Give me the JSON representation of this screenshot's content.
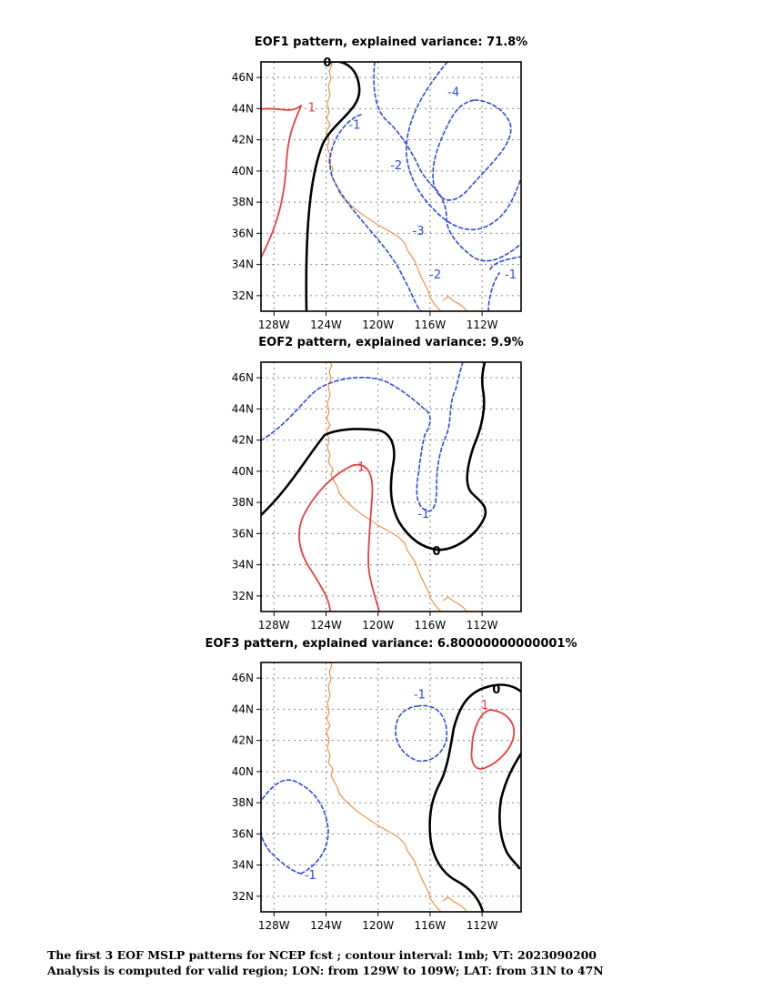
{
  "colors": {
    "positive": "#e84040",
    "negative": "#2a4be0",
    "zero": "#000000",
    "coast": "#f08020",
    "grid": "#888888"
  },
  "caption": {
    "line1": "The first 3 EOF MSLP patterns for NCEP fcst ; contour interval: 1mb; VT: 2023090200",
    "line2": "Analysis is computed for valid region; LON: from 129W to 109W; LAT: from 31N to 47N"
  },
  "chart_data": [
    {
      "type": "contour",
      "title": "EOF1 pattern, explained variance: 71.8%",
      "xlim": [
        -129,
        -109
      ],
      "ylim": [
        31,
        47
      ],
      "xticks": [
        -128,
        -124,
        -120,
        -116,
        -112
      ],
      "xtick_labels": [
        "128W",
        "124W",
        "120W",
        "116W",
        "112W"
      ],
      "yticks": [
        32,
        34,
        36,
        38,
        40,
        42,
        44,
        46
      ],
      "ytick_labels": [
        "32N",
        "34N",
        "36N",
        "38N",
        "40N",
        "42N",
        "44N",
        "46N"
      ],
      "grid": true,
      "contour_labels": [
        {
          "text": "0",
          "lon": -123.9,
          "lat": 47.0
        },
        {
          "text": "1",
          "lon": -125.1,
          "lat": 44.1
        },
        {
          "text": "-1",
          "lon": -121.8,
          "lat": 43.0
        },
        {
          "text": "-2",
          "lon": -118.6,
          "lat": 40.4
        },
        {
          "text": "-4",
          "lon": -114.2,
          "lat": 45.1
        },
        {
          "text": "-3",
          "lon": -116.9,
          "lat": 36.2
        },
        {
          "text": "-2",
          "lon": -115.6,
          "lat": 33.4
        },
        {
          "text": "-1",
          "lon": -109.8,
          "lat": 33.4
        }
      ]
    },
    {
      "type": "contour",
      "title": "EOF2 pattern, explained variance: 9.9%",
      "xlim": [
        -129,
        -109
      ],
      "ylim": [
        31,
        47
      ],
      "xticks": [
        -128,
        -124,
        -120,
        -116,
        -112
      ],
      "xtick_labels": [
        "128W",
        "124W",
        "120W",
        "116W",
        "112W"
      ],
      "yticks": [
        32,
        34,
        36,
        38,
        40,
        42,
        44,
        46
      ],
      "ytick_labels": [
        "32N",
        "34N",
        "36N",
        "38N",
        "40N",
        "42N",
        "44N",
        "46N"
      ],
      "grid": true,
      "contour_labels": [
        {
          "text": "1",
          "lon": -121.3,
          "lat": 40.3
        },
        {
          "text": "-1",
          "lon": -116.5,
          "lat": 37.3
        },
        {
          "text": "0",
          "lon": -115.5,
          "lat": 34.9
        }
      ]
    },
    {
      "type": "contour",
      "title": "EOF3 pattern, explained variance: 6.80000000000001%",
      "xlim": [
        -129,
        -109
      ],
      "ylim": [
        31,
        47
      ],
      "xticks": [
        -128,
        -124,
        -120,
        -116,
        -112
      ],
      "xtick_labels": [
        "128W",
        "124W",
        "120W",
        "116W",
        "112W"
      ],
      "yticks": [
        32,
        34,
        36,
        38,
        40,
        42,
        44,
        46
      ],
      "ytick_labels": [
        "32N",
        "34N",
        "36N",
        "38N",
        "40N",
        "42N",
        "44N",
        "46N"
      ],
      "grid": true,
      "contour_labels": [
        {
          "text": "0",
          "lon": -110.9,
          "lat": 45.3
        },
        {
          "text": "-1",
          "lon": -116.8,
          "lat": 45.0
        },
        {
          "text": "1",
          "lon": -111.8,
          "lat": 44.3
        },
        {
          "text": "-1",
          "lon": -125.2,
          "lat": 33.4
        }
      ]
    }
  ]
}
